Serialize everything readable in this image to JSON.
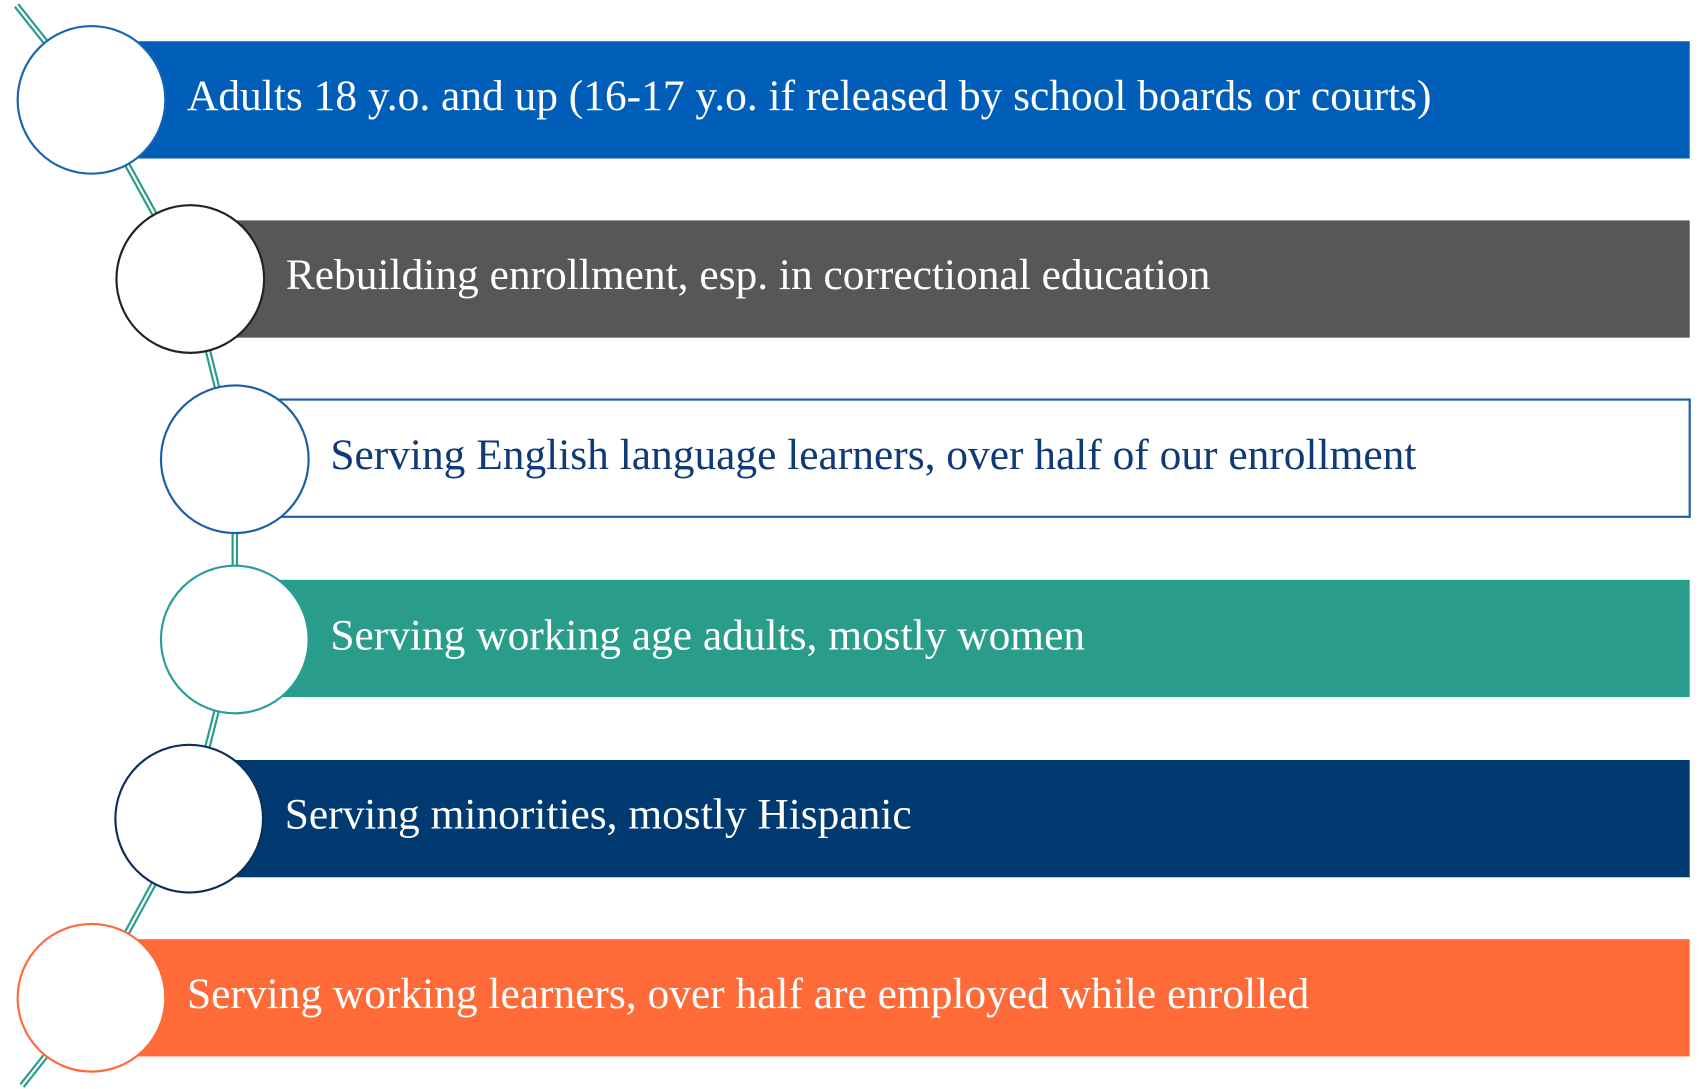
{
  "items": [
    {
      "label": "Adults 18 y.o. and up (16-17 y.o. if released by school boards or courts)"
    },
    {
      "label": "Rebuilding enrollment, esp. in correctional education"
    },
    {
      "label": "Serving English language learners, over half of our enrollment"
    },
    {
      "label": "Serving working age adults, mostly women"
    },
    {
      "label": "Serving minorities, mostly Hispanic"
    },
    {
      "label": "Serving working learners, over half are employed while enrolled"
    }
  ]
}
